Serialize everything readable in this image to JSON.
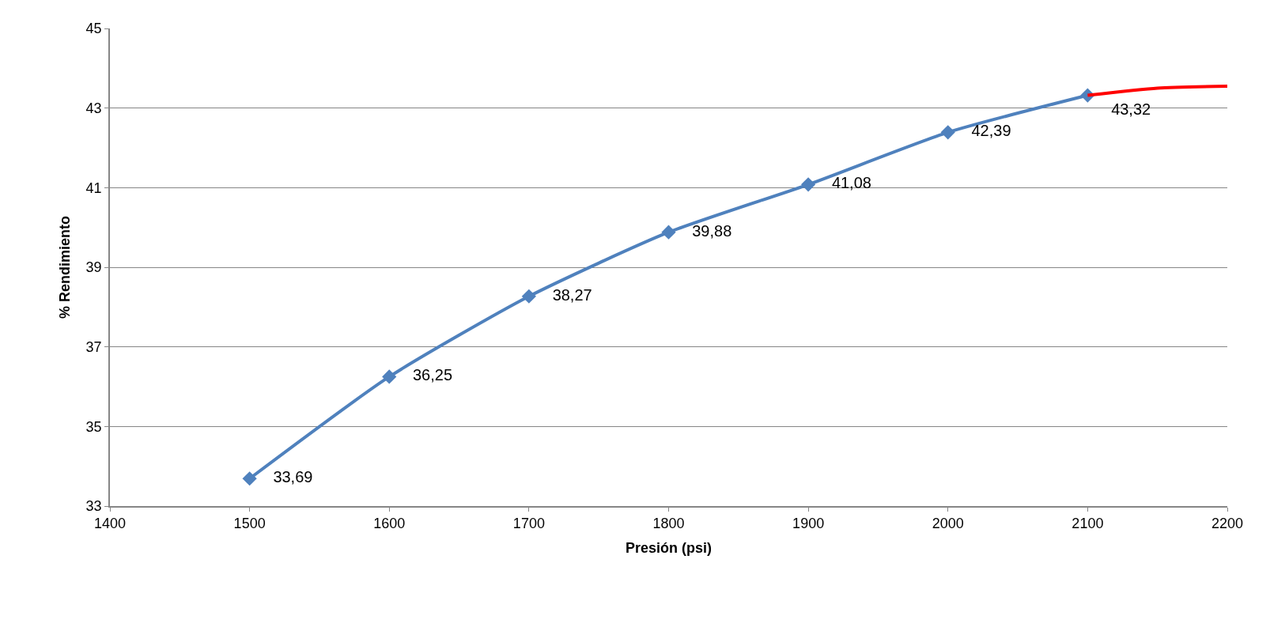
{
  "chart_data": {
    "type": "line",
    "xlabel": "Presión (psi)",
    "ylabel": "% Rendimiento",
    "xlim": [
      1400,
      2200
    ],
    "xticks": [
      1400,
      1500,
      1600,
      1700,
      1800,
      1900,
      2000,
      2100,
      2200
    ],
    "ylim": [
      33,
      45
    ],
    "yticks": [
      33,
      35,
      37,
      39,
      41,
      43,
      45
    ],
    "grid": "y",
    "line_style": "solid",
    "series": [
      {
        "color": "#4f81bd",
        "marker": "diamond",
        "x": [
          1500,
          1600,
          1700,
          1800,
          1900,
          2000,
          2100
        ],
        "values": [
          33.69,
          36.25,
          38.27,
          39.88,
          41.08,
          42.39,
          43.32
        ],
        "value_labels": [
          "33,69",
          "36,25",
          "38,27",
          "39,88",
          "41,08",
          "42,39",
          "43,32"
        ]
      },
      {
        "color": "#ff0000",
        "marker": "none",
        "x": [
          2100,
          2150,
          2200
        ],
        "values": [
          43.32,
          43.5,
          43.55
        ]
      }
    ]
  }
}
